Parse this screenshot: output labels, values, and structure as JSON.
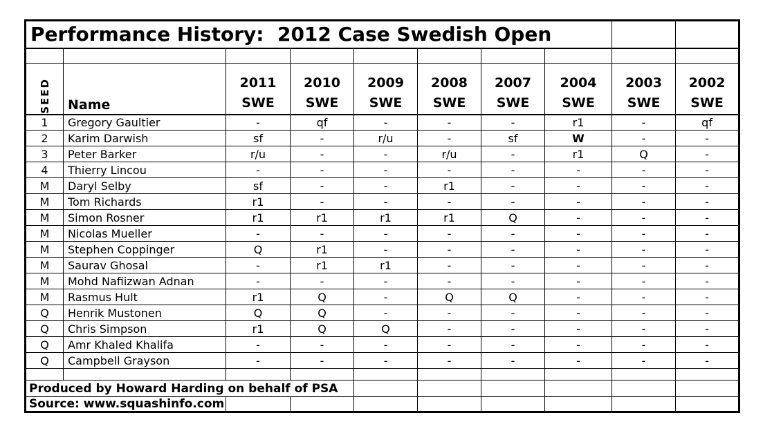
{
  "title": "Performance History:  2012 Case Swedish Open",
  "colors": {
    "text": "#000000",
    "background": "#ffffff",
    "border": "#000000",
    "winner_accent": "#000000"
  },
  "header": {
    "seed_label": "SEED",
    "name_label": "Name",
    "year_columns": [
      {
        "year": "2011",
        "event": "SWE"
      },
      {
        "year": "2010",
        "event": "SWE"
      },
      {
        "year": "2009",
        "event": "SWE"
      },
      {
        "year": "2008",
        "event": "SWE"
      },
      {
        "year": "2007",
        "event": "SWE"
      },
      {
        "year": "2004",
        "event": "SWE"
      },
      {
        "year": "2003",
        "event": "SWE"
      },
      {
        "year": "2002",
        "event": "SWE"
      }
    ]
  },
  "results": {
    "rows": [
      {
        "seed": "1",
        "name": "Gregory Gaultier",
        "cells": [
          "-",
          "qf",
          "-",
          "-",
          "-",
          "r1",
          "-",
          "qf"
        ]
      },
      {
        "seed": "2",
        "name": "Karim Darwish",
        "cells": [
          "sf",
          "-",
          "r/u",
          "-",
          "sf",
          "W",
          "-",
          "-"
        ]
      },
      {
        "seed": "3",
        "name": "Peter Barker",
        "cells": [
          "r/u",
          "-",
          "-",
          "r/u",
          "-",
          "r1",
          "Q",
          "-"
        ]
      },
      {
        "seed": "4",
        "name": "Thierry Lincou",
        "cells": [
          "-",
          "-",
          "-",
          "-",
          "-",
          "-",
          "-",
          "-"
        ]
      },
      {
        "seed": "M",
        "name": "Daryl Selby",
        "cells": [
          "sf",
          "-",
          "-",
          "r1",
          "-",
          "-",
          "-",
          "-"
        ]
      },
      {
        "seed": "M",
        "name": "Tom Richards",
        "cells": [
          "r1",
          "-",
          "-",
          "-",
          "-",
          "-",
          "-",
          "-"
        ]
      },
      {
        "seed": "M",
        "name": "Simon Rosner",
        "cells": [
          "r1",
          "r1",
          "r1",
          "r1",
          "Q",
          "-",
          "-",
          "-"
        ]
      },
      {
        "seed": "M",
        "name": "Nicolas Mueller",
        "cells": [
          "-",
          "-",
          "-",
          "-",
          "-",
          "-",
          "-",
          "-"
        ]
      },
      {
        "seed": "M",
        "name": "Stephen Coppinger",
        "cells": [
          "Q",
          "r1",
          "-",
          "-",
          "-",
          "-",
          "-",
          "-"
        ]
      },
      {
        "seed": "M",
        "name": "Saurav Ghosal",
        "cells": [
          "-",
          "r1",
          "r1",
          "-",
          "-",
          "-",
          "-",
          "-"
        ]
      },
      {
        "seed": "M",
        "name": "Mohd Nafiizwan Adnan",
        "cells": [
          "-",
          "-",
          "-",
          "-",
          "-",
          "-",
          "-",
          "-"
        ]
      },
      {
        "seed": "M",
        "name": "Rasmus Hult",
        "cells": [
          "r1",
          "Q",
          "-",
          "Q",
          "Q",
          "-",
          "-",
          "-"
        ]
      },
      {
        "seed": "Q",
        "name": "Henrik Mustonen",
        "cells": [
          "Q",
          "Q",
          "-",
          "-",
          "-",
          "-",
          "-",
          "-"
        ]
      },
      {
        "seed": "Q",
        "name": "Chris Simpson",
        "cells": [
          "r1",
          "Q",
          "Q",
          "-",
          "-",
          "-",
          "-",
          "-"
        ]
      },
      {
        "seed": "Q",
        "name": "Amr Khaled Khalifa",
        "cells": [
          "-",
          "-",
          "-",
          "-",
          "-",
          "-",
          "-",
          "-"
        ]
      },
      {
        "seed": "Q",
        "name": "Campbell Grayson",
        "cells": [
          "-",
          "-",
          "-",
          "-",
          "-",
          "-",
          "-",
          "-"
        ]
      }
    ]
  },
  "footer": {
    "produced_by": "Produced by Howard Harding on behalf of PSA",
    "source": "Source: www.squashinfo.com"
  }
}
